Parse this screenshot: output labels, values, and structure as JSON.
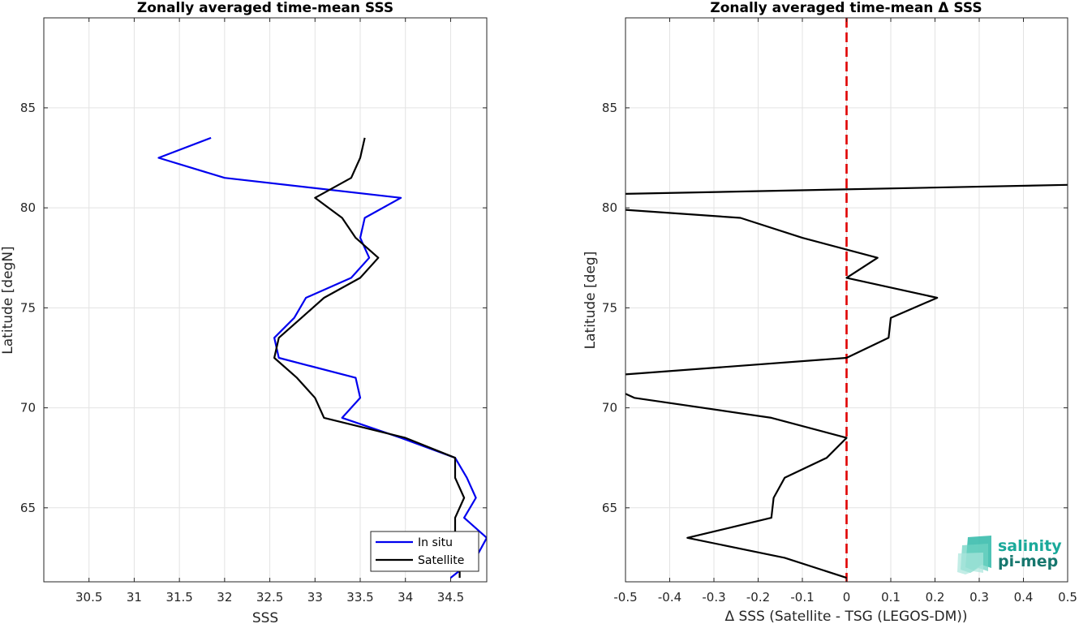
{
  "chart_data": [
    {
      "type": "line",
      "title": "Zonally averaged time-mean SSS",
      "xlabel": "SSS",
      "ylabel": "Latitude [degN]",
      "xlim": [
        30.0,
        34.9
      ],
      "ylim": [
        61.3,
        89.5
      ],
      "xticks": [
        30.5,
        31,
        31.5,
        32,
        32.5,
        33,
        33.5,
        34,
        34.5
      ],
      "xtick_labels": [
        "30.5",
        "31",
        "31.5",
        "32",
        "32.5",
        "33",
        "33.5",
        "34",
        "34.5"
      ],
      "yticks": [
        65,
        70,
        75,
        80,
        85
      ],
      "ytick_labels": [
        "65",
        "70",
        "75",
        "80",
        "85"
      ],
      "grid": true,
      "legend_position": "bottom-right",
      "series": [
        {
          "name": "In situ",
          "color": "#0000ee",
          "x": [
            34.5,
            34.78,
            34.9,
            34.65,
            34.78,
            34.68,
            34.55,
            33.95,
            33.3,
            33.5,
            33.45,
            32.6,
            32.55,
            32.77,
            32.9,
            33.4,
            33.6,
            33.5,
            33.55,
            33.95,
            32.0,
            31.27,
            31.85
          ],
          "y": [
            61.5,
            62.5,
            63.5,
            64.5,
            65.5,
            66.5,
            67.5,
            68.5,
            69.5,
            70.5,
            71.5,
            72.5,
            73.5,
            74.5,
            75.5,
            76.5,
            77.5,
            78.5,
            79.5,
            80.5,
            81.5,
            82.5,
            83.5
          ]
        },
        {
          "name": "Satellite",
          "color": "#000000",
          "x": [
            34.6,
            34.6,
            34.55,
            34.55,
            34.65,
            34.55,
            34.55,
            34.0,
            33.1,
            33.0,
            32.8,
            32.55,
            32.6,
            32.85,
            33.1,
            33.5,
            33.7,
            33.45,
            33.3,
            33.0,
            33.4,
            33.5,
            33.55
          ],
          "y": [
            61.5,
            62.5,
            63.5,
            64.5,
            65.5,
            66.5,
            67.5,
            68.5,
            69.5,
            70.5,
            71.5,
            72.5,
            73.5,
            74.5,
            75.5,
            76.5,
            77.5,
            78.5,
            79.5,
            80.5,
            81.5,
            82.5,
            83.5
          ]
        }
      ]
    },
    {
      "type": "line",
      "title": "Zonally averaged time-mean Δ SSS",
      "xlabel": "Δ SSS (Satellite - TSG (LEGOS-DM))",
      "ylabel": "Latitude [deg]",
      "xlim": [
        -0.5,
        0.5
      ],
      "ylim": [
        61.3,
        89.5
      ],
      "xticks": [
        -0.5,
        -0.4,
        -0.3,
        -0.2,
        -0.1,
        0,
        0.1,
        0.2,
        0.3,
        0.4,
        0.5
      ],
      "xtick_labels": [
        "-0.5",
        "-0.4",
        "-0.3",
        "-0.2",
        "-0.1",
        "0",
        "0.1",
        "0.2",
        "0.3",
        "0.4",
        "0.5"
      ],
      "yticks": [
        65,
        70,
        75,
        80,
        85
      ],
      "ytick_labels": [
        "65",
        "70",
        "75",
        "80",
        "85"
      ],
      "grid": true,
      "reference_line": {
        "x": 0,
        "color": "#e00000",
        "style": "dashed"
      },
      "series": [
        {
          "color": "#000000",
          "x": [
            0.0,
            -0.14,
            -0.36,
            -0.17,
            -0.165,
            -0.14,
            -0.045,
            0.0,
            -0.17,
            -0.48,
            -0.5
          ],
          "y": [
            61.5,
            62.5,
            63.5,
            64.5,
            65.5,
            66.5,
            67.5,
            68.5,
            69.5,
            70.5,
            70.7
          ]
        },
        {
          "color": "#000000",
          "x": [
            -0.5,
            0.0,
            0.095,
            0.1,
            0.205,
            0.0,
            0.07,
            -0.1,
            -0.24,
            -0.5
          ],
          "y": [
            71.67,
            72.5,
            73.5,
            74.5,
            75.5,
            76.5,
            77.5,
            78.5,
            79.5,
            79.9
          ]
        },
        {
          "color": "#000000",
          "x": [
            -0.5,
            0.5
          ],
          "y": [
            80.7,
            81.15
          ]
        }
      ]
    }
  ],
  "logo": {
    "line1": "salinity",
    "line2": "pi-mep",
    "color1": "#1aa99a",
    "color2": "#17776e"
  }
}
